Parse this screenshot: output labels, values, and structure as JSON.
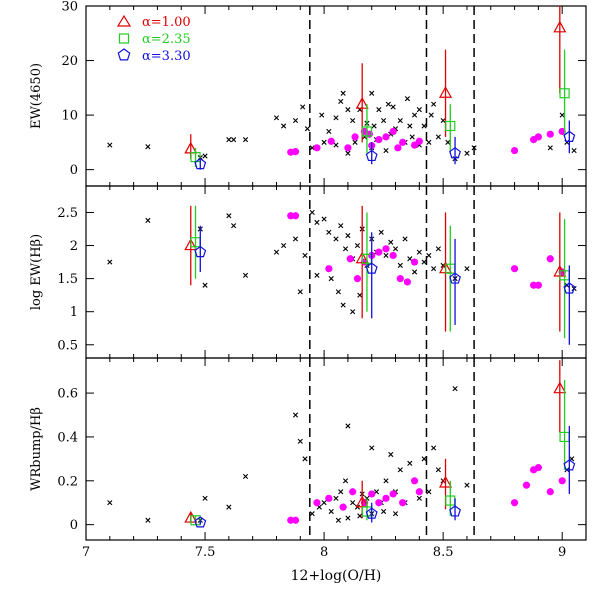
{
  "chart_data": {
    "type": "scatter",
    "x_axis": {
      "label": "12+log(O/H)",
      "range": [
        7.0,
        9.1
      ],
      "ticks": [
        "7",
        "7.5",
        "8",
        "8.5",
        "9"
      ],
      "tick_values": [
        7,
        7.5,
        8,
        8.5,
        9
      ]
    },
    "reference_lines_x": [
      7.94,
      8.43,
      8.63
    ],
    "legend": {
      "placement": "top-left",
      "entries": [
        {
          "label": "α=1.00",
          "marker": "triangle",
          "color": "#e00000"
        },
        {
          "label": "α=2.35",
          "marker": "square",
          "color": "#22cc22"
        },
        {
          "label": "α=3.30",
          "marker": "pentagon",
          "color": "#1010e0"
        }
      ]
    },
    "panels": [
      {
        "id": "ew4650",
        "ylabel": "EW(4650)",
        "ylim": [
          -3,
          30
        ],
        "ticks": [
          "0",
          "10",
          "20",
          "30"
        ],
        "tick_values": [
          0,
          10,
          20,
          30
        ],
        "crosses": [
          [
            7.1,
            4.5
          ],
          [
            7.26,
            4.2
          ],
          [
            7.48,
            2.2
          ],
          [
            7.5,
            2.5
          ],
          [
            7.6,
            5.5
          ],
          [
            7.62,
            5.5
          ],
          [
            7.67,
            5.5
          ],
          [
            7.8,
            9.5
          ],
          [
            7.83,
            8
          ],
          [
            7.88,
            9
          ],
          [
            7.91,
            11.5
          ],
          [
            7.93,
            7.5
          ],
          [
            7.99,
            10
          ],
          [
            8.02,
            7
          ],
          [
            8.05,
            9.5
          ],
          [
            8.07,
            12.5
          ],
          [
            8.08,
            14
          ],
          [
            8.1,
            11
          ],
          [
            8.12,
            9
          ],
          [
            8.15,
            11
          ],
          [
            8.18,
            8.5
          ],
          [
            8.2,
            14
          ],
          [
            8.21,
            8
          ],
          [
            8.23,
            11
          ],
          [
            8.25,
            9
          ],
          [
            8.27,
            12
          ],
          [
            8.29,
            11.5
          ],
          [
            8.3,
            7.5
          ],
          [
            8.32,
            9
          ],
          [
            8.35,
            13
          ],
          [
            8.36,
            8
          ],
          [
            8.38,
            10
          ],
          [
            8.4,
            11
          ],
          [
            8.42,
            8
          ],
          [
            8.45,
            10
          ],
          [
            8.46,
            12
          ],
          [
            8.48,
            6
          ],
          [
            8.5,
            9
          ],
          [
            8.52,
            5
          ],
          [
            8.55,
            2
          ],
          [
            8.6,
            3
          ],
          [
            8.63,
            4
          ],
          [
            8.95,
            4
          ],
          [
            9.0,
            10
          ],
          [
            9.02,
            5
          ],
          [
            9.05,
            3.5
          ],
          [
            7.95,
            4
          ],
          [
            8.0,
            5
          ],
          [
            8.05,
            4.5
          ],
          [
            8.1,
            3
          ],
          [
            8.13,
            5
          ],
          [
            8.17,
            6
          ],
          [
            8.2,
            4
          ],
          [
            8.22,
            5.5
          ],
          [
            8.26,
            3.5
          ],
          [
            8.28,
            6.5
          ],
          [
            8.31,
            4
          ],
          [
            8.34,
            5
          ],
          [
            8.37,
            6
          ],
          [
            8.4,
            4.5
          ],
          [
            8.44,
            5
          ]
        ],
        "magenta": [
          [
            7.86,
            3.2
          ],
          [
            7.88,
            3.3
          ],
          [
            7.97,
            4
          ],
          [
            8.03,
            5.2
          ],
          [
            8.1,
            4
          ],
          [
            8.13,
            6
          ],
          [
            8.17,
            7
          ],
          [
            8.19,
            6.5
          ],
          [
            8.2,
            4.4
          ],
          [
            8.23,
            5.5
          ],
          [
            8.26,
            6
          ],
          [
            8.29,
            7
          ],
          [
            8.31,
            4
          ],
          [
            8.33,
            5
          ],
          [
            8.38,
            4.5
          ],
          [
            8.4,
            5.2
          ],
          [
            8.8,
            3.5
          ],
          [
            8.88,
            5.5
          ],
          [
            8.9,
            6
          ],
          [
            8.95,
            6.5
          ],
          [
            9.0,
            7
          ]
        ],
        "models": {
          "red": [
            [
              7.44,
              3.8,
              2,
              6.5
            ],
            [
              8.16,
              12,
              5,
              19.5
            ],
            [
              8.51,
              14,
              6,
              22
            ],
            [
              8.99,
              26,
              14,
              30
            ]
          ],
          "green": [
            [
              7.46,
              2.3,
              0.5,
              4
            ],
            [
              8.18,
              7,
              3,
              12
            ],
            [
              8.53,
              8,
              3,
              12
            ],
            [
              9.01,
              14,
              6,
              22
            ]
          ],
          "blue": [
            [
              7.48,
              1,
              0,
              2
            ],
            [
              8.2,
              2.5,
              1,
              5
            ],
            [
              8.55,
              3,
              1,
              6
            ],
            [
              9.03,
              6,
              3,
              9
            ]
          ]
        }
      },
      {
        "id": "logewhb",
        "ylabel": "log EW(Hβ)",
        "ylim": [
          0.3,
          2.9
        ],
        "ticks": [
          "0.5",
          "1",
          "1.5",
          "2",
          "2.5"
        ],
        "tick_values": [
          0.5,
          1,
          1.5,
          2,
          2.5
        ],
        "crosses": [
          [
            7.1,
            1.75
          ],
          [
            7.26,
            2.38
          ],
          [
            7.48,
            2.25
          ],
          [
            7.5,
            1.4
          ],
          [
            7.6,
            2.45
          ],
          [
            7.62,
            2.3
          ],
          [
            7.67,
            1.55
          ],
          [
            7.8,
            1.9
          ],
          [
            7.83,
            2.0
          ],
          [
            7.88,
            2.1
          ],
          [
            7.92,
            1.85
          ],
          [
            7.95,
            2.5
          ],
          [
            7.97,
            2.35
          ],
          [
            8.0,
            2.4
          ],
          [
            8.02,
            2.2
          ],
          [
            8.05,
            2.1
          ],
          [
            8.07,
            2.3
          ],
          [
            8.09,
            1.95
          ],
          [
            8.1,
            2.15
          ],
          [
            8.12,
            1.8
          ],
          [
            8.14,
            2.0
          ],
          [
            8.16,
            2.25
          ],
          [
            8.18,
            1.7
          ],
          [
            8.2,
            2.1
          ],
          [
            8.22,
            1.9
          ],
          [
            8.24,
            2.2
          ],
          [
            8.26,
            1.85
          ],
          [
            8.28,
            2.05
          ],
          [
            8.3,
            1.95
          ],
          [
            8.32,
            1.7
          ],
          [
            8.34,
            2.1
          ],
          [
            8.36,
            1.8
          ],
          [
            8.38,
            1.6
          ],
          [
            8.4,
            1.9
          ],
          [
            8.42,
            1.75
          ],
          [
            8.44,
            1.85
          ],
          [
            8.46,
            1.65
          ],
          [
            8.48,
            1.95
          ],
          [
            8.5,
            1.7
          ],
          [
            8.55,
            1.5
          ],
          [
            8.6,
            1.65
          ],
          [
            8.03,
            1.5
          ],
          [
            8.06,
            1.3
          ],
          [
            8.08,
            1.1
          ],
          [
            8.12,
            1.0
          ],
          [
            8.15,
            1.25
          ],
          [
            7.9,
            1.3
          ],
          [
            7.97,
            1.55
          ],
          [
            9.02,
            1.4
          ],
          [
            9.05,
            1.35
          ]
        ],
        "magenta": [
          [
            7.86,
            2.45
          ],
          [
            7.88,
            2.45
          ],
          [
            8.02,
            1.65
          ],
          [
            8.11,
            1.8
          ],
          [
            8.14,
            1.5
          ],
          [
            8.17,
            1.75
          ],
          [
            8.2,
            1.85
          ],
          [
            8.23,
            1.9
          ],
          [
            8.26,
            1.95
          ],
          [
            8.29,
            1.85
          ],
          [
            8.32,
            1.5
          ],
          [
            8.35,
            1.45
          ],
          [
            8.38,
            1.75
          ],
          [
            8.8,
            1.65
          ],
          [
            8.88,
            1.4
          ],
          [
            8.9,
            1.4
          ],
          [
            8.95,
            1.8
          ],
          [
            9.0,
            1.6
          ]
        ],
        "models": {
          "red": [
            [
              7.44,
              2.0,
              1.4,
              2.6
            ],
            [
              8.16,
              1.8,
              0.9,
              2.6
            ],
            [
              8.51,
              1.65,
              0.7,
              2.5
            ],
            [
              8.99,
              1.6,
              0.7,
              2.5
            ]
          ],
          "green": [
            [
              7.46,
              2.05,
              1.5,
              2.6
            ],
            [
              8.18,
              1.8,
              1.0,
              2.5
            ],
            [
              8.53,
              1.65,
              0.7,
              2.3
            ],
            [
              9.01,
              1.55,
              0.6,
              2.4
            ]
          ],
          "blue": [
            [
              7.48,
              1.9,
              1.6,
              2.3
            ],
            [
              8.2,
              1.65,
              0.9,
              2.2
            ],
            [
              8.55,
              1.5,
              0.8,
              2.1
            ],
            [
              9.03,
              1.35,
              0.5,
              1.7
            ]
          ]
        }
      },
      {
        "id": "wrbump",
        "ylabel": "WRbump/Hβ",
        "ylim": [
          -0.07,
          0.76
        ],
        "ticks": [
          "0",
          "0.2",
          "0.4",
          "0.6"
        ],
        "tick_values": [
          0,
          0.2,
          0.4,
          0.6
        ],
        "crosses": [
          [
            7.1,
            0.1
          ],
          [
            7.26,
            0.02
          ],
          [
            7.48,
            0.02
          ],
          [
            7.5,
            0.12
          ],
          [
            7.6,
            0.08
          ],
          [
            7.67,
            0.22
          ],
          [
            7.88,
            0.5
          ],
          [
            7.9,
            0.38
          ],
          [
            7.92,
            0.3
          ],
          [
            7.95,
            0.05
          ],
          [
            7.98,
            0.08
          ],
          [
            8.0,
            0.1
          ],
          [
            8.03,
            0.06
          ],
          [
            8.05,
            0.12
          ],
          [
            8.07,
            0.15
          ],
          [
            8.09,
            0.2
          ],
          [
            8.1,
            0.45
          ],
          [
            8.12,
            0.1
          ],
          [
            8.14,
            0.08
          ],
          [
            8.16,
            0.14
          ],
          [
            8.18,
            0.12
          ],
          [
            8.2,
            0.35
          ],
          [
            8.22,
            0.15
          ],
          [
            8.24,
            0.1
          ],
          [
            8.26,
            0.2
          ],
          [
            8.28,
            0.32
          ],
          [
            8.3,
            0.15
          ],
          [
            8.32,
            0.25
          ],
          [
            8.34,
            0.1
          ],
          [
            8.36,
            0.28
          ],
          [
            8.38,
            0.2
          ],
          [
            8.4,
            0.12
          ],
          [
            8.42,
            0.3
          ],
          [
            8.44,
            0.15
          ],
          [
            8.46,
            0.35
          ],
          [
            8.48,
            0.25
          ],
          [
            8.5,
            0.2
          ],
          [
            8.55,
            0.62
          ],
          [
            8.6,
            0.18
          ],
          [
            8.06,
            0.02
          ],
          [
            8.1,
            0.03
          ],
          [
            8.15,
            0.04
          ],
          [
            8.2,
            0.05
          ],
          [
            8.25,
            0.06
          ],
          [
            8.3,
            0.05
          ],
          [
            9.02,
            0.25
          ],
          [
            9.04,
            0.3
          ]
        ],
        "magenta": [
          [
            7.86,
            0.02
          ],
          [
            7.88,
            0.02
          ],
          [
            7.97,
            0.1
          ],
          [
            8.02,
            0.12
          ],
          [
            8.08,
            0.08
          ],
          [
            8.12,
            0.15
          ],
          [
            8.17,
            0.1
          ],
          [
            8.2,
            0.14
          ],
          [
            8.23,
            0.1
          ],
          [
            8.26,
            0.12
          ],
          [
            8.29,
            0.14
          ],
          [
            8.33,
            0.1
          ],
          [
            8.38,
            0.2
          ],
          [
            8.4,
            0.15
          ],
          [
            8.8,
            0.1
          ],
          [
            8.85,
            0.18
          ],
          [
            8.88,
            0.25
          ],
          [
            8.9,
            0.26
          ],
          [
            8.95,
            0.15
          ],
          [
            9.0,
            0.2
          ]
        ],
        "models": {
          "red": [
            [
              7.44,
              0.03,
              0.01,
              0.05
            ],
            [
              8.16,
              0.1,
              0.03,
              0.2
            ],
            [
              8.51,
              0.19,
              0.07,
              0.3
            ],
            [
              8.99,
              0.62,
              0.42,
              0.75
            ]
          ],
          "green": [
            [
              7.46,
              0.02,
              0.0,
              0.04
            ],
            [
              8.18,
              0.06,
              0.02,
              0.12
            ],
            [
              8.53,
              0.11,
              0.04,
              0.2
            ],
            [
              9.01,
              0.4,
              0.25,
              0.66
            ]
          ],
          "blue": [
            [
              7.48,
              0.01,
              0.0,
              0.02
            ],
            [
              8.2,
              0.05,
              0.01,
              0.1
            ],
            [
              8.55,
              0.06,
              0.02,
              0.12
            ],
            [
              9.03,
              0.27,
              0.14,
              0.45
            ]
          ]
        }
      }
    ]
  }
}
